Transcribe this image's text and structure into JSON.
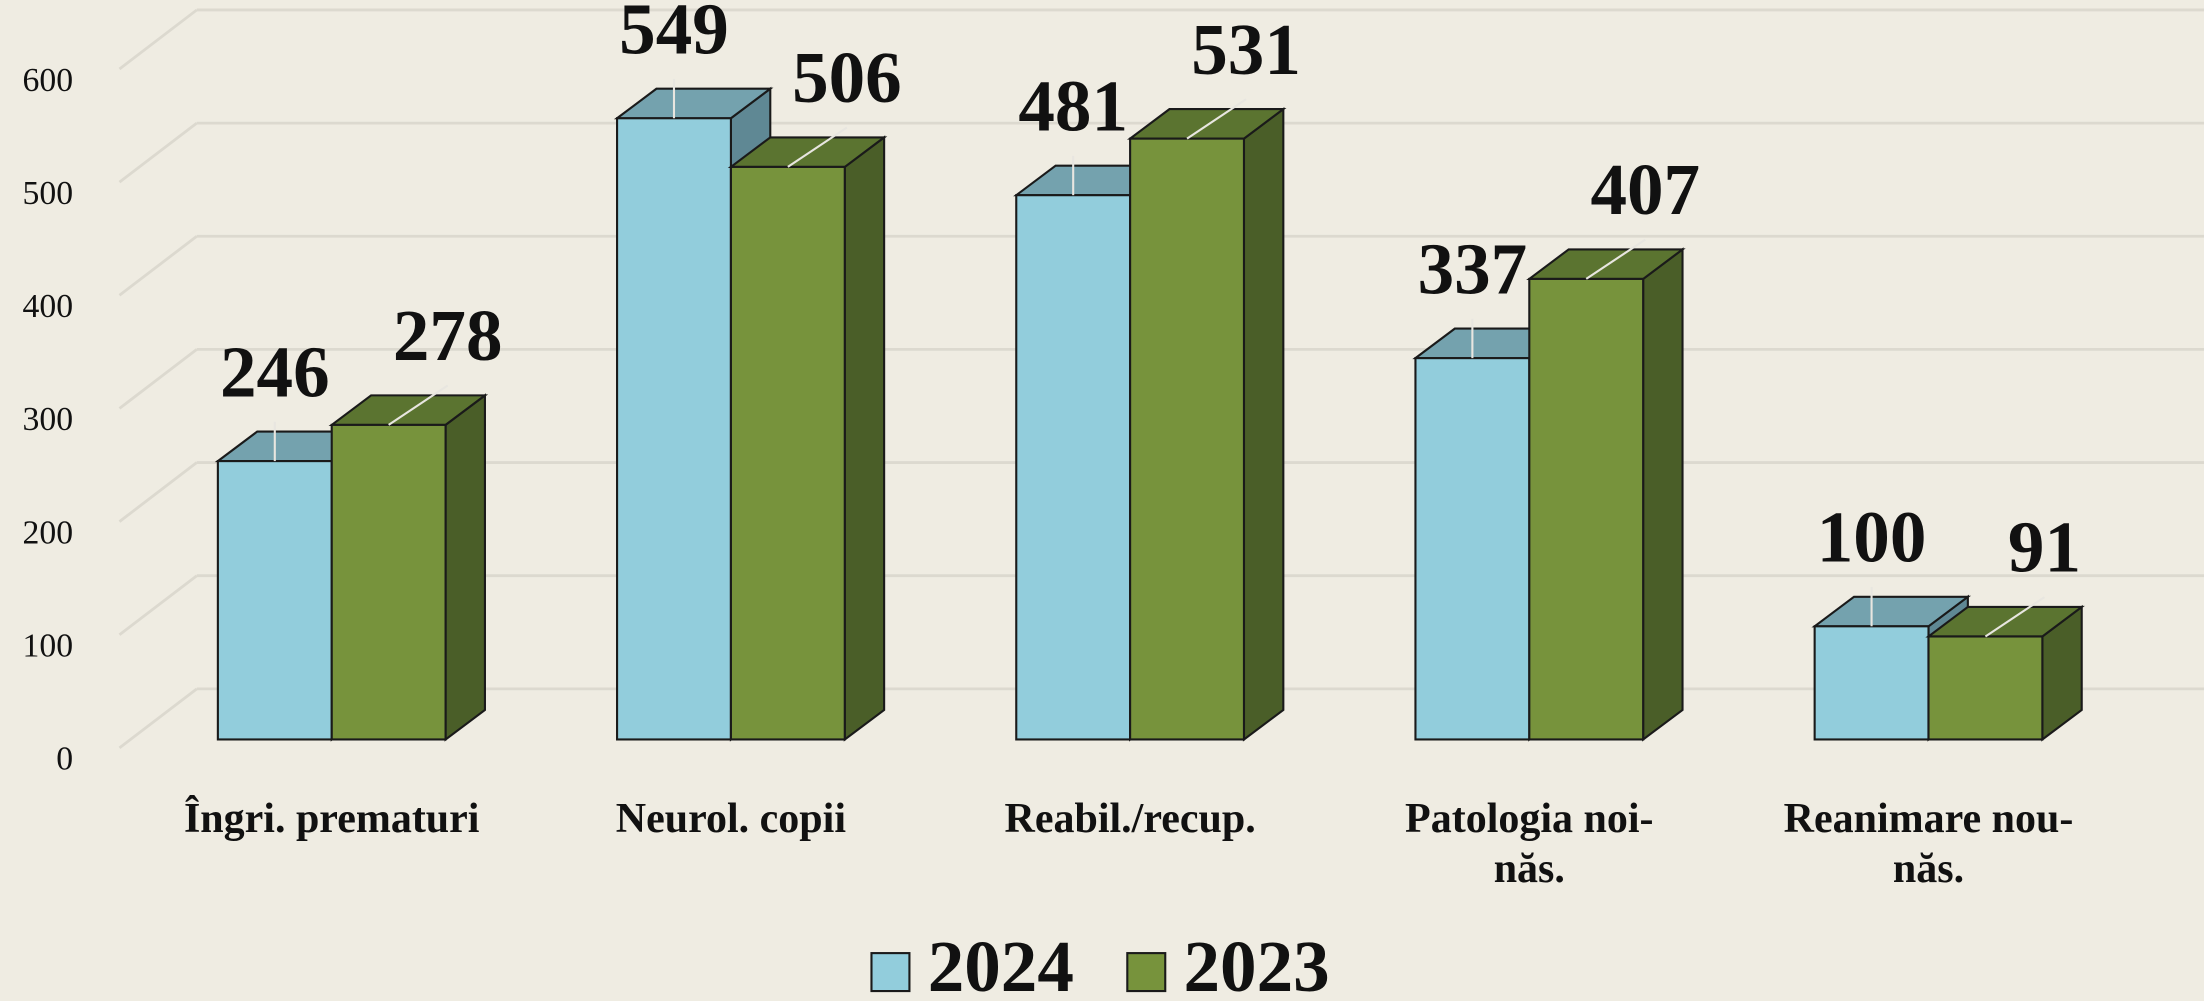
{
  "chart_data": {
    "type": "bar3d",
    "categories": [
      "Îngri. prematuri",
      "Neurol. copii",
      "Reabil./recup.",
      "Patologia noi-\nnăs.",
      "Reanimare nou-\nnăs."
    ],
    "series": [
      {
        "name": "2024",
        "color": "#92cddc",
        "values": [
          246,
          549,
          481,
          337,
          100
        ]
      },
      {
        "name": "2023",
        "color": "#77933c",
        "values": [
          278,
          506,
          531,
          407,
          91
        ]
      }
    ],
    "ylim": [
      0,
      700
    ],
    "yticks": [
      0,
      100,
      200,
      300,
      400,
      500,
      600
    ],
    "grid": true,
    "legend": "bottom"
  }
}
